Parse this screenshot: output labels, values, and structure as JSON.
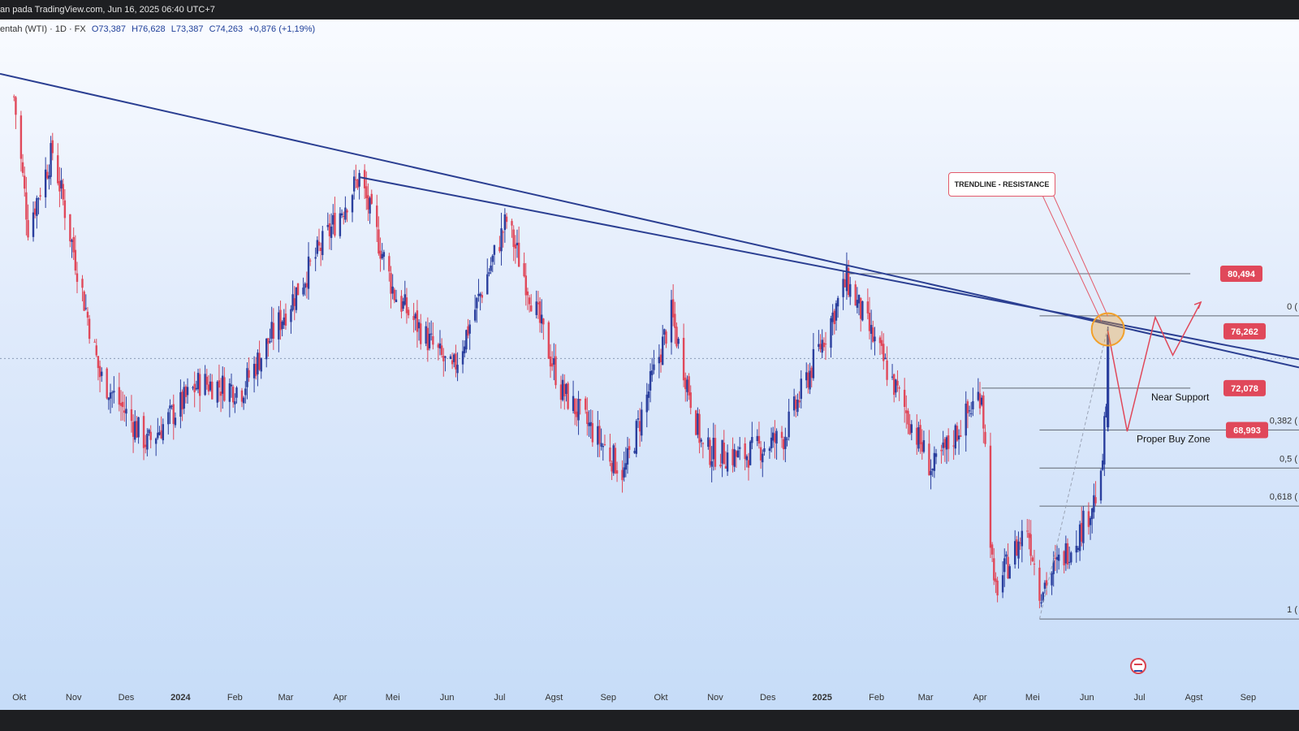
{
  "header": {
    "title": "an pada TradingView.com, Jun 16, 2025 06:40 UTC+7"
  },
  "legend": {
    "symbol": "entah (WTI) · 1D · FX",
    "open": "O73,387",
    "high": "H76,628",
    "low": "L73,387",
    "close": "C74,263",
    "change": "+0,876 (+1,19%)"
  },
  "annotations": {
    "trendline_label": "TRENDLINE - RESISTANCE",
    "near_support": "Near Support",
    "proper_buy_zone": "Proper Buy Zone"
  },
  "price_tags": [
    {
      "value": 80.494,
      "label": "80,494"
    },
    {
      "value": 76.262,
      "label": "76,262"
    },
    {
      "value": 72.078,
      "label": "72,078"
    },
    {
      "value": 68.993,
      "label": "68,993"
    }
  ],
  "fib_levels": [
    {
      "value": 77.4,
      "label": "0 ("
    },
    {
      "value": 69.0,
      "label": "0,382 ("
    },
    {
      "value": 66.2,
      "label": "0,5 ("
    },
    {
      "value": 63.4,
      "label": "0,618 ("
    },
    {
      "value": 55.1,
      "label": "1 ("
    }
  ],
  "colors": {
    "up": "#2a3f9e",
    "down": "#e0485a",
    "trendline": "#2b3f92",
    "accent": "#f2a02a"
  },
  "chart_data": {
    "type": "candlestick",
    "x_ticks": [
      "Okt",
      "Nov",
      "Des",
      "2024",
      "Feb",
      "Mar",
      "Apr",
      "Mei",
      "Jun",
      "Jul",
      "Agst",
      "Sep",
      "Okt",
      "Nov",
      "Des",
      "2025",
      "Feb",
      "Mar",
      "Apr",
      "Mei",
      "Jun",
      "Jul",
      "Agst",
      "Sep"
    ],
    "x_tick_bold": [
      "2024",
      "2025"
    ],
    "ylim": [
      52,
      98
    ],
    "current_price": 74.263,
    "keypoints": [
      [
        "2023-09-28",
        93.5
      ],
      [
        "2023-10-06",
        84.0
      ],
      [
        "2023-10-20",
        89.5
      ],
      [
        "2023-11-16",
        73.0
      ],
      [
        "2023-12-13",
        68.0
      ],
      [
        "2024-01-12",
        72.5
      ],
      [
        "2024-02-05",
        72.0
      ],
      [
        "2024-03-15",
        81.0
      ],
      [
        "2024-04-12",
        87.6
      ],
      [
        "2024-05-02",
        79.0
      ],
      [
        "2024-06-04",
        73.2
      ],
      [
        "2024-07-05",
        84.4
      ],
      [
        "2024-08-05",
        72.0
      ],
      [
        "2024-09-10",
        65.8
      ],
      [
        "2024-10-07",
        77.5
      ],
      [
        "2024-10-25",
        67.5
      ],
      [
        "2024-11-15",
        67.0
      ],
      [
        "2024-12-10",
        68.5
      ],
      [
        "2025-01-15",
        80.0
      ],
      [
        "2025-03-05",
        66.0
      ],
      [
        "2025-04-02",
        71.9
      ],
      [
        "2025-04-09",
        57.0
      ],
      [
        "2025-04-28",
        62.0
      ],
      [
        "2025-05-05",
        57.2
      ],
      [
        "2025-05-28",
        61.5
      ],
      [
        "2025-06-09",
        65.0
      ],
      [
        "2025-06-13",
        72.9
      ]
    ],
    "trendlines": [
      {
        "from": [
          "2023-09-20",
          95.2
        ],
        "to": [
          "2025-09-30",
          73.6
        ]
      },
      {
        "from": [
          "2024-04-12",
          87.6
        ],
        "to": [
          "2025-09-30",
          74.2
        ]
      }
    ],
    "projection_path": [
      [
        "2025-06-13",
        76.3
      ],
      [
        "2025-06-24",
        68.9
      ],
      [
        "2025-07-10",
        77.3
      ],
      [
        "2025-07-20",
        74.5
      ],
      [
        "2025-08-05",
        78.4
      ]
    ]
  }
}
